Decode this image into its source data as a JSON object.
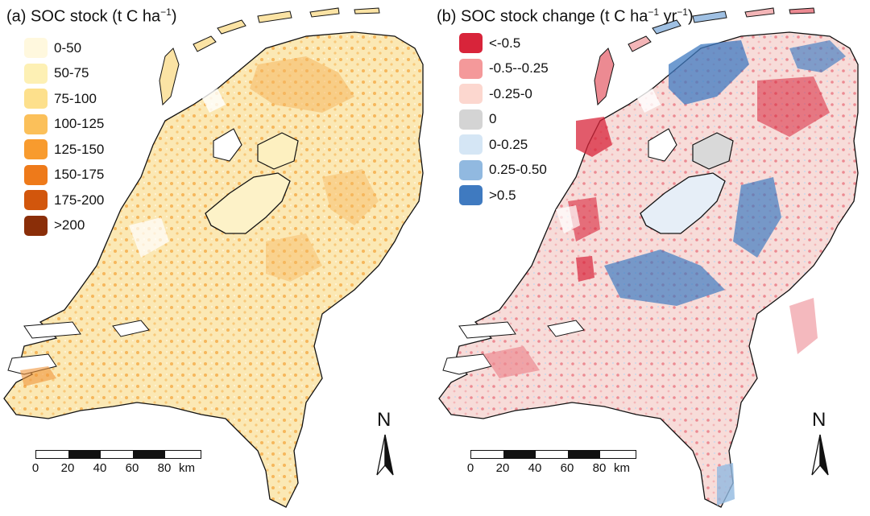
{
  "panel_a": {
    "label": "(a)",
    "title_main": "SOC stock (t C ha",
    "title_sup": "−1",
    "title_close": ")",
    "legend": [
      {
        "label": "0-50",
        "color": "#fff8de"
      },
      {
        "label": "50-75",
        "color": "#fdf0b4"
      },
      {
        "label": "75-100",
        "color": "#fde08c"
      },
      {
        "label": "100-125",
        "color": "#fbc05a"
      },
      {
        "label": "125-150",
        "color": "#f89b2e"
      },
      {
        "label": "150-175",
        "color": "#ee7a1a"
      },
      {
        "label": "175-200",
        "color": "#d2560c"
      },
      {
        "label": ">200",
        "color": "#8a2e08"
      }
    ]
  },
  "panel_b": {
    "label": "(b)",
    "title_main": "SOC stock change (t C ha",
    "title_sup1": "−1",
    "title_mid": " yr",
    "title_sup2": "−1",
    "title_close": ")",
    "legend": [
      {
        "label": "<-0.5",
        "color": "#d8243a"
      },
      {
        "label": "-0.5--0.25",
        "color": "#f4999a"
      },
      {
        "label": "-0.25-0",
        "color": "#fcd7cf"
      },
      {
        "label": "0",
        "color": "#d4d4d4"
      },
      {
        "label": "0-0.25",
        "color": "#d5e6f5"
      },
      {
        "label": "0.25-0.50",
        "color": "#91b9e0"
      },
      {
        "label": ">0.5",
        "color": "#3f7ac0"
      }
    ]
  },
  "north_label": "N",
  "scale_bar": {
    "ticks": [
      "0",
      "20",
      "40",
      "60",
      "80"
    ],
    "unit": "km"
  },
  "map_colors": {
    "outline": "#111111",
    "fill_a_base": "#fbe3a4",
    "fill_a_dark": "#f4aa45",
    "fill_b_base": "#f6c9c6",
    "fill_b_red": "#d8243a",
    "fill_b_blue": "#3f7ac0",
    "fill_b_grey": "#d4d4d4"
  }
}
